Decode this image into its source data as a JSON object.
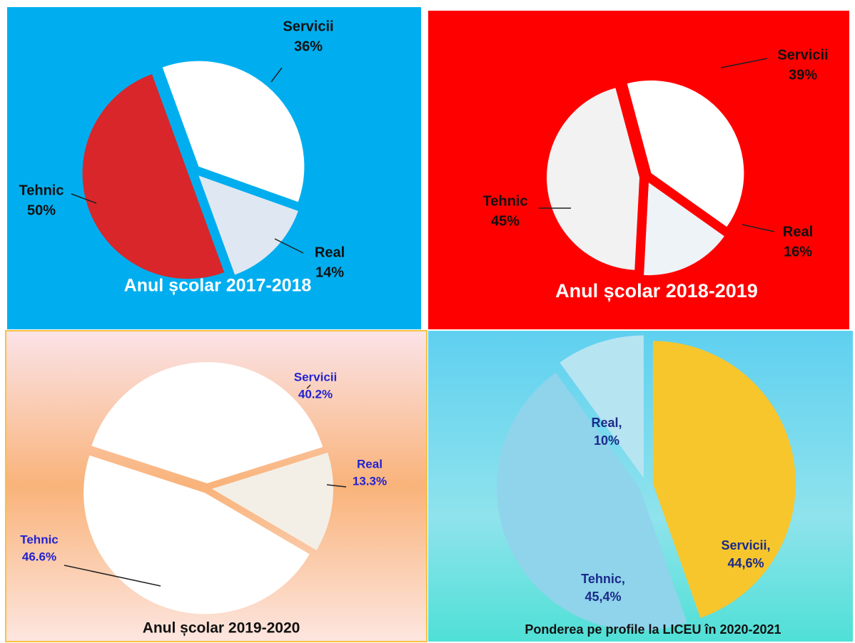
{
  "chart_data": [
    {
      "type": "pie",
      "title": "Anul școlar 2017-2018",
      "categories": [
        "Servicii",
        "Real",
        "Tehnic"
      ],
      "values": [
        36,
        14,
        50
      ],
      "value_labels": [
        "36%",
        "14%",
        "50%"
      ],
      "colors": [
        "#ffffff",
        "#dfe8f2",
        "#d8262b"
      ]
    },
    {
      "type": "pie",
      "title": "Anul școlar 2018-2019",
      "categories": [
        "Servicii",
        "Real",
        "Tehnic"
      ],
      "values": [
        39,
        16,
        45
      ],
      "value_labels": [
        "39%",
        "16%",
        "45%"
      ],
      "colors": [
        "#ffffff",
        "#eef3f8",
        "#f2f2f2"
      ]
    },
    {
      "type": "pie",
      "title": "Anul școlar 2019-2020",
      "categories": [
        "Servicii",
        "Real",
        "Tehnic"
      ],
      "values": [
        40.2,
        13.3,
        46.6
      ],
      "value_labels": [
        "40.2%",
        "13.3%",
        "46.6%"
      ],
      "colors": [
        "#ffffff",
        "#f4efe6",
        "#ffffff"
      ]
    },
    {
      "type": "pie",
      "title": "Ponderea pe profile la LICEU în 2020-2021",
      "categories": [
        "Servicii,",
        "Tehnic,",
        "Real,"
      ],
      "values": [
        44.6,
        45.4,
        10
      ],
      "value_labels": [
        "44,6%",
        "45,4%",
        "10%"
      ],
      "colors": [
        "#f6c62c",
        "#8fd4ea",
        "#b7e4f1"
      ]
    }
  ]
}
